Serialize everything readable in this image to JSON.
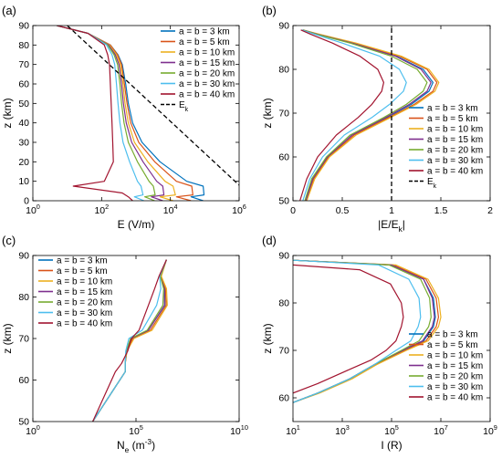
{
  "chart_data": [
    {
      "panel": "(a)",
      "type": "line",
      "xlabel": "E (V/m)",
      "ylabel": "z (km)",
      "xscale": "log",
      "xlim": [
        1,
        1000000
      ],
      "ylim": [
        0,
        90
      ],
      "xticks": [
        1,
        100,
        10000,
        1000000
      ],
      "xticklabels": [
        "10^0",
        "10^2",
        "10^4",
        "10^6"
      ],
      "yticks": [
        0,
        10,
        20,
        30,
        40,
        50,
        60,
        70,
        80,
        90
      ],
      "legend_position": "right",
      "grid": false,
      "series": [
        {
          "name": "a = b = 3 km",
          "color": "#0072BD",
          "x": [
            5,
            40,
            180,
            300,
            400,
            500,
            600,
            800,
            1500,
            5000,
            30000,
            90000,
            95000,
            40000,
            90000
          ],
          "y": [
            90,
            86,
            80,
            75,
            70,
            60,
            50,
            40,
            30,
            20,
            10,
            7.5,
            3,
            2,
            0
          ]
        },
        {
          "name": "a = b = 5 km",
          "color": "#D95319",
          "x": [
            5,
            40,
            180,
            290,
            380,
            460,
            550,
            700,
            1200,
            3500,
            15000,
            42000,
            45000,
            15000,
            40000
          ],
          "y": [
            90,
            86,
            80,
            75,
            70,
            60,
            50,
            40,
            30,
            20,
            10,
            7.5,
            3,
            2,
            0
          ]
        },
        {
          "name": "a = b = 10 km",
          "color": "#EDB120",
          "x": [
            5,
            40,
            170,
            270,
            350,
            420,
            480,
            600,
            900,
            2200,
            7000,
            12000,
            14000,
            5000,
            12000
          ],
          "y": [
            90,
            86,
            80,
            75,
            70,
            60,
            50,
            40,
            30,
            20,
            10,
            7.5,
            3,
            2,
            0
          ]
        },
        {
          "name": "a = b = 15 km",
          "color": "#7E2F8E",
          "x": [
            5,
            40,
            160,
            250,
            320,
            380,
            430,
            520,
            750,
            1600,
            4000,
            6000,
            6500,
            2800,
            6000
          ],
          "y": [
            90,
            86,
            80,
            75,
            70,
            60,
            50,
            40,
            30,
            20,
            10,
            7.5,
            3,
            2,
            0
          ]
        },
        {
          "name": "a = b = 20 km",
          "color": "#77AC30",
          "x": [
            5,
            40,
            150,
            230,
            290,
            340,
            380,
            450,
            600,
            1100,
            2400,
            3200,
            3600,
            1800,
            3500
          ],
          "y": [
            90,
            86,
            80,
            75,
            70,
            60,
            50,
            40,
            30,
            20,
            10,
            7.5,
            3,
            2,
            0
          ]
        },
        {
          "name": "a = b = 30 km",
          "color": "#4DBEEE",
          "x": [
            5,
            40,
            140,
            200,
            240,
            270,
            300,
            340,
            420,
            650,
            1100,
            1400,
            1600,
            900,
            1700
          ],
          "y": [
            90,
            86,
            80,
            75,
            70,
            60,
            50,
            40,
            30,
            20,
            10,
            7.5,
            3,
            2,
            0
          ]
        },
        {
          "name": "a = b = 40 km",
          "color": "#A2142F",
          "x": [
            5,
            40,
            120,
            150,
            170,
            180,
            190,
            200,
            210,
            220,
            120,
            15,
            400,
            600,
            800
          ],
          "y": [
            90,
            86,
            80,
            75,
            70,
            60,
            50,
            40,
            30,
            20,
            10,
            7.5,
            4,
            2,
            0
          ]
        },
        {
          "name": "E_k",
          "color": "#000000",
          "dashed": true,
          "x": [
            10,
            1000000
          ],
          "y": [
            90,
            8
          ]
        }
      ]
    },
    {
      "panel": "(b)",
      "type": "line",
      "xlabel": "|E/E_k|",
      "ylabel": "z (km)",
      "xlim": [
        0,
        2
      ],
      "ylim": [
        50,
        90
      ],
      "xticks": [
        0,
        0.5,
        1,
        1.5,
        2
      ],
      "yticks": [
        50,
        60,
        70,
        80,
        90
      ],
      "legend_position": "bottom-right",
      "grid": false,
      "series": [
        {
          "name": "a = b = 3 km",
          "color": "#0072BD",
          "x": [
            0.1,
            0.25,
            0.6,
            1.05,
            1.32,
            1.42,
            1.38,
            1.2,
            0.95,
            0.6,
            0.35,
            0.2,
            0.13
          ],
          "y": [
            89,
            88,
            86,
            83,
            80,
            77,
            75,
            72,
            69,
            65,
            60,
            55,
            50
          ]
        },
        {
          "name": "a = b = 5 km",
          "color": "#D95319",
          "x": [
            0.1,
            0.26,
            0.62,
            1.08,
            1.36,
            1.46,
            1.42,
            1.23,
            0.97,
            0.62,
            0.36,
            0.21,
            0.14
          ],
          "y": [
            89,
            88,
            86,
            83,
            80,
            77,
            75,
            72,
            69,
            65,
            60,
            55,
            50
          ]
        },
        {
          "name": "a = b = 10 km",
          "color": "#EDB120",
          "x": [
            0.1,
            0.27,
            0.64,
            1.1,
            1.38,
            1.48,
            1.44,
            1.25,
            0.99,
            0.64,
            0.37,
            0.22,
            0.14
          ],
          "y": [
            89,
            88,
            86,
            83,
            80,
            77,
            75,
            72,
            69,
            65,
            60,
            55,
            50
          ]
        },
        {
          "name": "a = b = 15 km",
          "color": "#7E2F8E",
          "x": [
            0.1,
            0.25,
            0.6,
            1.04,
            1.3,
            1.4,
            1.36,
            1.18,
            0.94,
            0.6,
            0.35,
            0.2,
            0.13
          ],
          "y": [
            89,
            88,
            86,
            83,
            80,
            77,
            75,
            72,
            69,
            65,
            60,
            55,
            50
          ]
        },
        {
          "name": "a = b = 20 km",
          "color": "#77AC30",
          "x": [
            0.1,
            0.24,
            0.58,
            1.0,
            1.26,
            1.36,
            1.32,
            1.15,
            0.92,
            0.58,
            0.34,
            0.19,
            0.12
          ],
          "y": [
            89,
            88,
            86,
            83,
            80,
            77,
            75,
            72,
            69,
            65,
            60,
            55,
            50
          ]
        },
        {
          "name": "a = b = 30 km",
          "color": "#4DBEEE",
          "x": [
            0.09,
            0.22,
            0.5,
            0.88,
            1.08,
            1.15,
            1.12,
            0.98,
            0.8,
            0.52,
            0.3,
            0.17,
            0.1
          ],
          "y": [
            89,
            88,
            86,
            83,
            80,
            77,
            75,
            72,
            69,
            65,
            60,
            55,
            50
          ]
        },
        {
          "name": "a = b = 40 km",
          "color": "#A2142F",
          "x": [
            0.08,
            0.18,
            0.4,
            0.68,
            0.86,
            0.92,
            0.9,
            0.8,
            0.66,
            0.44,
            0.25,
            0.14,
            0.07
          ],
          "y": [
            89,
            88,
            86,
            83,
            80,
            77,
            75,
            72,
            69,
            65,
            60,
            55,
            50
          ]
        },
        {
          "name": "E_k",
          "color": "#000000",
          "dashed": true,
          "x": [
            1,
            1
          ],
          "y": [
            50,
            90
          ]
        }
      ]
    },
    {
      "panel": "(c)",
      "type": "line",
      "xlabel": "N_e (m^-3)",
      "ylabel": "z (km)",
      "xscale": "log",
      "xlim": [
        1,
        10000000000
      ],
      "ylim": [
        50,
        90
      ],
      "xticks": [
        1,
        100000,
        10000000000
      ],
      "xticklabels": [
        "10^0",
        "10^5",
        "10^10"
      ],
      "yticks": [
        50,
        60,
        70,
        80,
        90
      ],
      "legend_position": "top-left",
      "grid": false,
      "series": [
        {
          "name": "a = b = 3 km",
          "color": "#0072BD",
          "x": [
            3000000,
            1500000,
            2500000,
            2500000,
            400000,
            60000,
            35000,
            30000,
            30000,
            800
          ],
          "y": [
            89,
            85,
            82,
            78,
            72,
            70,
            67,
            64,
            62,
            50
          ]
        },
        {
          "name": "a = b = 5 km",
          "color": "#D95319",
          "x": [
            3000000,
            1600000,
            2700000,
            2900000,
            500000,
            70000,
            36000,
            30000,
            30000,
            800
          ],
          "y": [
            89,
            85,
            82,
            78,
            72,
            70,
            67,
            64,
            62,
            50
          ]
        },
        {
          "name": "a = b = 10 km",
          "color": "#EDB120",
          "x": [
            3000000,
            1700000,
            3000000,
            3300000,
            600000,
            80000,
            37000,
            30000,
            30000,
            800
          ],
          "y": [
            89,
            85,
            82,
            78,
            72,
            70,
            67,
            64,
            62,
            50
          ]
        },
        {
          "name": "a = b = 15 km",
          "color": "#7E2F8E",
          "x": [
            3000000,
            1500000,
            2400000,
            2400000,
            400000,
            60000,
            34000,
            30000,
            30000,
            800
          ],
          "y": [
            89,
            85,
            82,
            78,
            72,
            70,
            67,
            64,
            62,
            50
          ]
        },
        {
          "name": "a = b = 20 km",
          "color": "#77AC30",
          "x": [
            3000000,
            1500000,
            2200000,
            2000000,
            350000,
            55000,
            33000,
            30000,
            30000,
            800
          ],
          "y": [
            89,
            85,
            82,
            78,
            72,
            70,
            67,
            64,
            62,
            50
          ]
        },
        {
          "name": "a = b = 30 km",
          "color": "#4DBEEE",
          "x": [
            3000000,
            1400000,
            1600000,
            1000000,
            200000,
            45000,
            32000,
            30000,
            30000,
            800
          ],
          "y": [
            89,
            85,
            82,
            78,
            72,
            70,
            67,
            64,
            62,
            50
          ]
        },
        {
          "name": "a = b = 40 km",
          "color": "#A2142F",
          "x": [
            3000000,
            1300000,
            800000,
            400000,
            140000,
            60000,
            40000,
            20000,
            10000,
            800
          ],
          "y": [
            89,
            85,
            82,
            78,
            72,
            70,
            67,
            64,
            62,
            50
          ]
        }
      ]
    },
    {
      "panel": "(d)",
      "type": "line",
      "xlabel": "I (R)",
      "ylabel": "z (km)",
      "xscale": "log",
      "xlim": [
        10,
        1000000000
      ],
      "ylim": [
        55,
        90
      ],
      "xticks": [
        10,
        1000,
        100000,
        10000000,
        1000000000
      ],
      "xticklabels": [
        "10^1",
        "10^3",
        "10^5",
        "10^7",
        "10^9"
      ],
      "yticks": [
        60,
        70,
        80,
        90
      ],
      "legend_position": "bottom-right",
      "grid": false,
      "series": [
        {
          "name": "a = b = 3 km",
          "color": "#0072BD",
          "x": [
            10,
            100000,
            2000000,
            5000000,
            6000000,
            5000000,
            2000000,
            300000,
            20000,
            2000,
            100,
            10
          ],
          "y": [
            89,
            88,
            85,
            81,
            77,
            75,
            72,
            70,
            67,
            64,
            61,
            59
          ]
        },
        {
          "name": "a = b = 5 km",
          "color": "#D95319",
          "x": [
            10,
            120000,
            2500000,
            6500000,
            8000000,
            6500000,
            2500000,
            350000,
            22000,
            2200,
            110,
            10
          ],
          "y": [
            89,
            88,
            85,
            81,
            77,
            75,
            72,
            70,
            67,
            64,
            61,
            59
          ]
        },
        {
          "name": "a = b = 10 km",
          "color": "#EDB120",
          "x": [
            10,
            150000,
            3000000,
            8000000,
            10000000,
            8000000,
            3000000,
            400000,
            25000,
            2500,
            120,
            10
          ],
          "y": [
            89,
            88,
            85,
            81,
            77,
            75,
            72,
            70,
            67,
            64,
            61,
            59
          ]
        },
        {
          "name": "a = b = 15 km",
          "color": "#7E2F8E",
          "x": [
            10,
            100000,
            2000000,
            4500000,
            5500000,
            4500000,
            1800000,
            280000,
            20000,
            2000,
            100,
            10
          ],
          "y": [
            89,
            88,
            85,
            81,
            77,
            75,
            72,
            70,
            67,
            64,
            61,
            59
          ]
        },
        {
          "name": "a = b = 20 km",
          "color": "#77AC30",
          "x": [
            10,
            80000,
            1500000,
            3500000,
            4000000,
            3200000,
            1300000,
            250000,
            20000,
            2000,
            100,
            10
          ],
          "y": [
            89,
            88,
            85,
            81,
            77,
            75,
            72,
            70,
            67,
            64,
            61,
            59
          ]
        },
        {
          "name": "a = b = 30 km",
          "color": "#4DBEEE",
          "x": [
            10,
            30000,
            500000,
            1300000,
            1500000,
            1200000,
            600000,
            150000,
            20000,
            2000,
            100,
            10
          ],
          "y": [
            89,
            88,
            85,
            81,
            77,
            75,
            72,
            70,
            67,
            64,
            61,
            59
          ]
        },
        {
          "name": "a = b = 40 km",
          "color": "#A2142F",
          "x": [
            10,
            5000,
            90000,
            250000,
            300000,
            250000,
            150000,
            60000,
            15000,
            2000,
            100,
            10
          ],
          "y": [
            88,
            87,
            84,
            80,
            77,
            75,
            72,
            70,
            68,
            66,
            63,
            61
          ]
        }
      ]
    }
  ]
}
